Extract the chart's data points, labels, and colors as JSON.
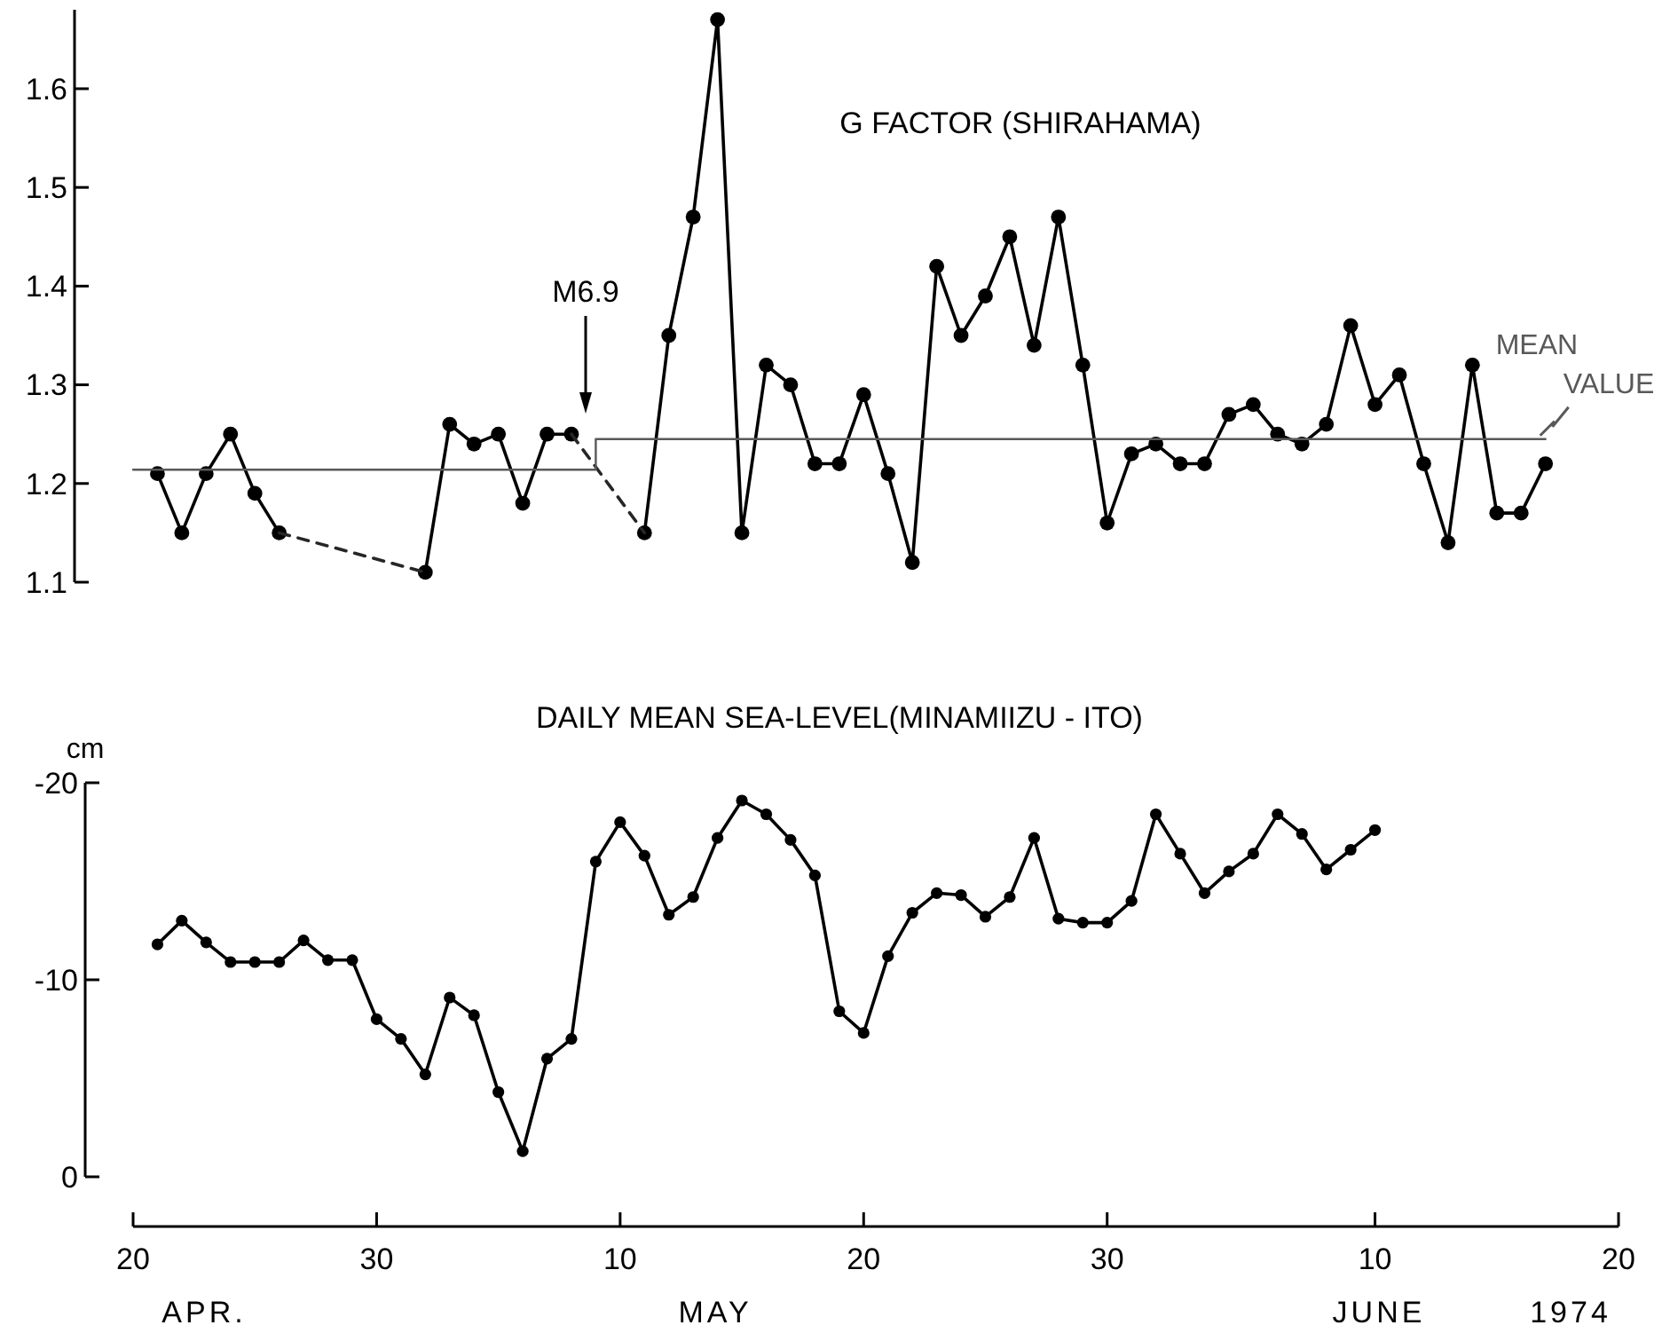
{
  "chart_data": [
    {
      "type": "line",
      "title": "G FACTOR (SHIRAHAMA)",
      "xlim": [
        "1974-04-20",
        "1974-06-20"
      ],
      "ylim": [
        1.1,
        1.68
      ],
      "yticks": [
        1.1,
        1.2,
        1.3,
        1.4,
        1.5,
        1.6
      ],
      "tick_labels": "y",
      "annotations": [
        "M6.9"
      ],
      "series": [
        {
          "color": "#000000",
          "marker": "circle",
          "line_style": "solid",
          "x": [
            "1974-04-21",
            "1974-04-22",
            "1974-04-23",
            "1974-04-24",
            "1974-04-25",
            "1974-04-26",
            "1974-04-29",
            "1974-05-02",
            "1974-05-03",
            "1974-05-04",
            "1974-05-05",
            "1974-05-06",
            "1974-05-07",
            "1974-05-08",
            "1974-05-09",
            "1974-05-11",
            "1974-05-12",
            "1974-05-13",
            "1974-05-14",
            "1974-05-15",
            "1974-05-16",
            "1974-05-17",
            "1974-05-18",
            "1974-05-19",
            "1974-05-20",
            "1974-05-21",
            "1974-05-22",
            "1974-05-23",
            "1974-05-24",
            "1974-05-25",
            "1974-05-26",
            "1974-05-27",
            "1974-05-28",
            "1974-05-29",
            "1974-05-30",
            "1974-05-31",
            "1974-06-01",
            "1974-06-02",
            "1974-06-03",
            "1974-06-04",
            "1974-06-05",
            "1974-06-06",
            "1974-06-07",
            "1974-06-08",
            "1974-06-09",
            "1974-06-10",
            "1974-06-11",
            "1974-06-12",
            "1974-06-13",
            "1974-06-14",
            "1974-06-15",
            "1974-06-16",
            "1974-06-17"
          ],
          "values": [
            1.21,
            1.15,
            1.21,
            1.25,
            1.19,
            1.15,
            null,
            1.11,
            1.26,
            1.24,
            1.25,
            1.18,
            1.25,
            1.25,
            null,
            1.15,
            1.35,
            1.47,
            1.67,
            1.15,
            1.32,
            1.3,
            1.22,
            1.22,
            1.29,
            1.21,
            1.12,
            1.42,
            1.35,
            1.39,
            1.45,
            1.34,
            1.47,
            1.32,
            1.16,
            1.23,
            1.24,
            1.22,
            1.22,
            1.27,
            1.28,
            1.25,
            1.24,
            1.26,
            1.36,
            1.28,
            1.31,
            1.22,
            1.14,
            1.32,
            1.17,
            1.17,
            1.22
          ]
        },
        {
          "color": "#262626",
          "marker": "none",
          "line_style": "dashed",
          "x": [
            "1974-04-26",
            "1974-05-02",
            "1974-05-05",
            "1974-05-08",
            "1974-05-11"
          ],
          "values": [
            1.15,
            1.11,
            null,
            1.25,
            1.15
          ]
        },
        {
          "name": "MEAN VALUE",
          "color": "#595959",
          "marker": "none",
          "line_style": "solid",
          "x": [
            "1974-04-20",
            "1974-05-09",
            "1974-05-09",
            "1974-06-17"
          ],
          "values": [
            1.214,
            1.214,
            1.245,
            1.245
          ]
        }
      ]
    },
    {
      "type": "line",
      "title": "DAILY MEAN SEA-LEVEL(MINAMIIZU - ITO)",
      "ylabel": "cm",
      "xlim": [
        "1974-04-20",
        "1974-06-20"
      ],
      "xticks": [
        {
          "value": "1974-04-20",
          "label": "20"
        },
        {
          "value": "1974-04-30",
          "label": "30"
        },
        {
          "value": "1974-05-10",
          "label": "10"
        },
        {
          "value": "1974-05-20",
          "label": "20"
        },
        {
          "value": "1974-05-30",
          "label": "30"
        },
        {
          "value": "1974-06-10",
          "label": "10"
        },
        {
          "value": "1974-06-20",
          "label": "20"
        }
      ],
      "ylim": [
        0,
        -20
      ],
      "yticks": [
        0,
        -10,
        -20
      ],
      "annotations": [
        "APR.",
        "MAY",
        "JUNE",
        "1974"
      ],
      "series": [
        {
          "color": "#000000",
          "marker": "circle",
          "line_style": "solid",
          "x": [
            "1974-04-21",
            "1974-04-22",
            "1974-04-23",
            "1974-04-24",
            "1974-04-25",
            "1974-04-26",
            "1974-04-27",
            "1974-04-28",
            "1974-04-29",
            "1974-04-30",
            "1974-05-01",
            "1974-05-02",
            "1974-05-03",
            "1974-05-04",
            "1974-05-05",
            "1974-05-06",
            "1974-05-07",
            "1974-05-08",
            "1974-05-09",
            "1974-05-10",
            "1974-05-11",
            "1974-05-12",
            "1974-05-13",
            "1974-05-14",
            "1974-05-15",
            "1974-05-16",
            "1974-05-17",
            "1974-05-18",
            "1974-05-19",
            "1974-05-20",
            "1974-05-21",
            "1974-05-22",
            "1974-05-23",
            "1974-05-24",
            "1974-05-25",
            "1974-05-26",
            "1974-05-27",
            "1974-05-28",
            "1974-05-29",
            "1974-05-30",
            "1974-05-31",
            "1974-06-01",
            "1974-06-02",
            "1974-06-03",
            "1974-06-04",
            "1974-06-05",
            "1974-06-06",
            "1974-06-07",
            "1974-06-08",
            "1974-06-09",
            "1974-06-10"
          ],
          "values": [
            -11.8,
            -13.0,
            -11.9,
            -10.9,
            -10.9,
            -10.9,
            -12.0,
            -11.0,
            -11.0,
            -8.0,
            -7.0,
            -5.2,
            -9.1,
            -8.2,
            -4.3,
            -1.3,
            -6.0,
            -7.0,
            -16.0,
            -18.0,
            -16.3,
            -13.3,
            -14.2,
            -17.2,
            -19.1,
            -18.4,
            -17.1,
            -15.3,
            -8.4,
            -7.3,
            -11.2,
            -13.4,
            -14.4,
            -14.3,
            -13.2,
            -14.2,
            -17.2,
            -13.1,
            -12.9,
            -12.9,
            -14.0,
            -18.4,
            -16.4,
            -14.4,
            -15.5,
            -16.4,
            -18.4,
            -17.4,
            -15.6,
            -16.6,
            -17.6
          ]
        }
      ]
    }
  ]
}
